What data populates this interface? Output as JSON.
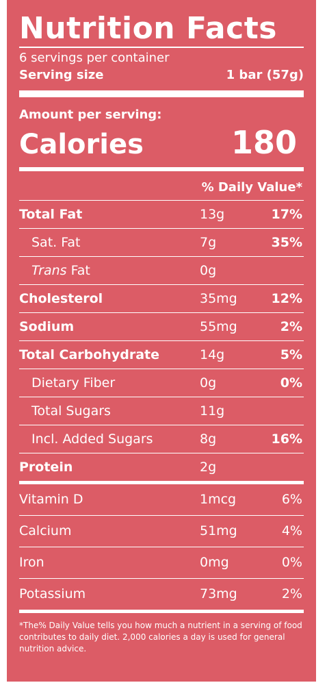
{
  "label": {
    "title": "Nutrition Facts",
    "servings_per_container": "6 servings per container",
    "serving_size_label": "Serving size",
    "serving_size_value": "1 bar (57g)",
    "amount_per_serving": "Amount per serving:",
    "calories_label": "Calories",
    "calories_value": "180",
    "dv_header": "% Daily Value*",
    "nutrients": [
      {
        "name": "Total Fat",
        "amount": "13g",
        "dv": "17%"
      },
      {
        "name": "Sat. Fat",
        "amount": "7g",
        "dv": "35%"
      },
      {
        "name_italic": "Trans",
        "name_rest": " Fat",
        "amount": "0g",
        "dv": ""
      },
      {
        "name": "Cholesterol",
        "amount": "35mg",
        "dv": "12%"
      },
      {
        "name": "Sodium",
        "amount": "55mg",
        "dv": "2%"
      },
      {
        "name": "Total Carbohydrate",
        "amount": "14g",
        "dv": "5%"
      },
      {
        "name": "Dietary Fiber",
        "amount": "0g",
        "dv": "0%"
      },
      {
        "name": "Total Sugars",
        "amount": "11g",
        "dv": ""
      },
      {
        "name": "Incl. Added Sugars",
        "amount": "8g",
        "dv": "16%"
      },
      {
        "name": "Protein",
        "amount": "2g",
        "dv": ""
      }
    ],
    "vitamins": [
      {
        "name": "Vitamin D",
        "amount": "1mcg",
        "dv": "6%"
      },
      {
        "name": "Calcium",
        "amount": "51mg",
        "dv": "4%"
      },
      {
        "name": "Iron",
        "amount": "0mg",
        "dv": "0%"
      },
      {
        "name": "Potassium",
        "amount": "73mg",
        "dv": "2%"
      }
    ],
    "footnote": "*The% Daily Value tells you how much a nutrient in a serving of food contributes to daily diet. 2,000 calories a day is used for general nutrition advice.",
    "colors": {
      "background": "#dc5c66",
      "text": "#ffffff"
    }
  }
}
